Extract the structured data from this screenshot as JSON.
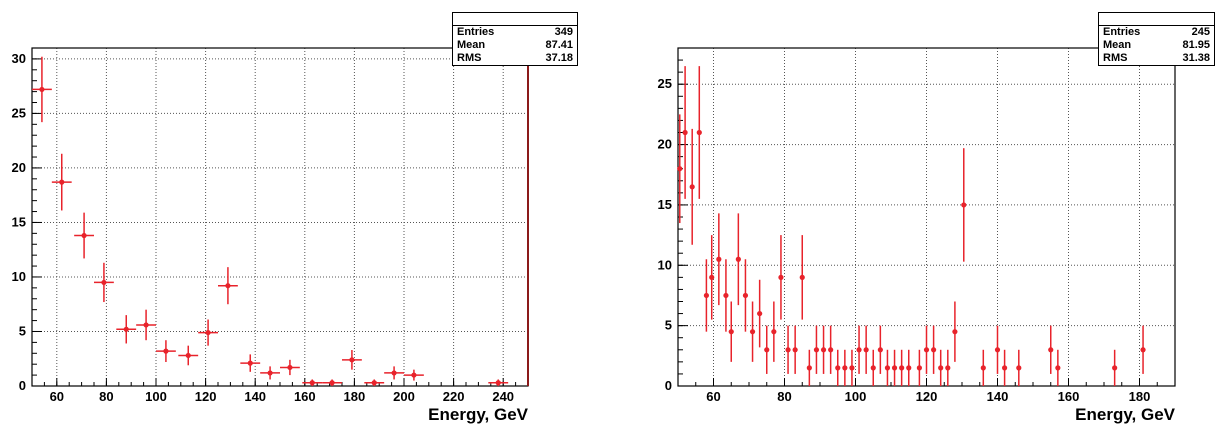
{
  "chart_data": [
    {
      "type": "scatter",
      "style": "histogram with error bars",
      "xlabel": "Energy, GeV",
      "xlim": [
        50,
        250
      ],
      "ylim": [
        0,
        31
      ],
      "xticks": [
        60,
        80,
        100,
        120,
        140,
        160,
        180,
        200,
        220,
        240
      ],
      "yticks": [
        0,
        5,
        10,
        15,
        20,
        25,
        30
      ],
      "grid": true,
      "color": "#e8232b",
      "stats": {
        "entries_label": "Entries",
        "entries": "349",
        "mean_label": "Mean",
        "mean": "87.41",
        "rms_label": "RMS",
        "rms": "37.18"
      },
      "points": [
        {
          "x": 54,
          "y": 27.2,
          "xerr": 4,
          "yerr": 3.0
        },
        {
          "x": 62,
          "y": 18.7,
          "xerr": 4,
          "yerr": 2.6
        },
        {
          "x": 71,
          "y": 13.8,
          "xerr": 4,
          "yerr": 2.1
        },
        {
          "x": 79,
          "y": 9.5,
          "xerr": 4,
          "yerr": 1.8
        },
        {
          "x": 88,
          "y": 5.2,
          "xerr": 4,
          "yerr": 1.3
        },
        {
          "x": 96,
          "y": 5.6,
          "xerr": 4,
          "yerr": 1.4
        },
        {
          "x": 104,
          "y": 3.2,
          "xerr": 4,
          "yerr": 1.0
        },
        {
          "x": 113,
          "y": 2.8,
          "xerr": 4,
          "yerr": 0.9
        },
        {
          "x": 121,
          "y": 4.9,
          "xerr": 4,
          "yerr": 1.2
        },
        {
          "x": 129,
          "y": 9.2,
          "xerr": 4,
          "yerr": 1.7
        },
        {
          "x": 138,
          "y": 2.1,
          "xerr": 4,
          "yerr": 0.8
        },
        {
          "x": 146,
          "y": 1.2,
          "xerr": 4,
          "yerr": 0.6
        },
        {
          "x": 154,
          "y": 1.7,
          "xerr": 4,
          "yerr": 0.7
        },
        {
          "x": 163,
          "y": 0.3,
          "xerr": 4,
          "yerr": 0.3
        },
        {
          "x": 171,
          "y": 0.3,
          "xerr": 4,
          "yerr": 0.3
        },
        {
          "x": 179,
          "y": 2.4,
          "xerr": 4,
          "yerr": 0.9
        },
        {
          "x": 188,
          "y": 0.3,
          "xerr": 4,
          "yerr": 0.3
        },
        {
          "x": 196,
          "y": 1.2,
          "xerr": 4,
          "yerr": 0.6
        },
        {
          "x": 204,
          "y": 1.0,
          "xerr": 4,
          "yerr": 0.5
        },
        {
          "x": 238,
          "y": 0.3,
          "xerr": 4,
          "yerr": 0.3
        }
      ]
    },
    {
      "type": "scatter",
      "style": "histogram with error bars",
      "xlabel": "Energy, GeV",
      "xlim": [
        50,
        190
      ],
      "ylim": [
        0,
        28
      ],
      "xticks": [
        60,
        80,
        100,
        120,
        140,
        160,
        180
      ],
      "yticks": [
        0,
        5,
        10,
        15,
        20,
        25
      ],
      "grid": true,
      "color": "#e8232b",
      "stats": {
        "entries_label": "Entries",
        "entries": "245",
        "mean_label": "Mean",
        "mean": "81.95",
        "rms_label": "RMS",
        "rms": "31.38"
      },
      "points": [
        {
          "x": 50.5,
          "y": 18.0,
          "yerr": 4.5
        },
        {
          "x": 52.0,
          "y": 21.0,
          "yerr": 5.5
        },
        {
          "x": 54.0,
          "y": 16.5,
          "yerr": 4.8
        },
        {
          "x": 56.0,
          "y": 21.0,
          "yerr": 5.5
        },
        {
          "x": 58.0,
          "y": 7.5,
          "yerr": 3.0
        },
        {
          "x": 59.5,
          "y": 9.0,
          "yerr": 3.5
        },
        {
          "x": 61.5,
          "y": 10.5,
          "yerr": 3.8
        },
        {
          "x": 63.5,
          "y": 7.5,
          "yerr": 3.0
        },
        {
          "x": 65.0,
          "y": 4.5,
          "yerr": 2.5
        },
        {
          "x": 67.0,
          "y": 10.5,
          "yerr": 3.8
        },
        {
          "x": 69.0,
          "y": 7.5,
          "yerr": 3.0
        },
        {
          "x": 71.0,
          "y": 4.5,
          "yerr": 2.5
        },
        {
          "x": 73.0,
          "y": 6.0,
          "yerr": 2.8
        },
        {
          "x": 75.0,
          "y": 3.0,
          "yerr": 2.0
        },
        {
          "x": 77.0,
          "y": 4.5,
          "yerr": 2.5
        },
        {
          "x": 79.0,
          "y": 9.0,
          "yerr": 3.5
        },
        {
          "x": 81.0,
          "y": 3.0,
          "yerr": 2.0
        },
        {
          "x": 83.0,
          "y": 3.0,
          "yerr": 2.0
        },
        {
          "x": 85.0,
          "y": 9.0,
          "yerr": 3.5
        },
        {
          "x": 87.0,
          "y": 1.5,
          "yerr": 1.5
        },
        {
          "x": 89.0,
          "y": 3.0,
          "yerr": 2.0
        },
        {
          "x": 91.0,
          "y": 3.0,
          "yerr": 2.0
        },
        {
          "x": 93.0,
          "y": 3.0,
          "yerr": 2.0
        },
        {
          "x": 95.0,
          "y": 1.5,
          "yerr": 1.5
        },
        {
          "x": 97.0,
          "y": 1.5,
          "yerr": 1.5
        },
        {
          "x": 99.0,
          "y": 1.5,
          "yerr": 1.5
        },
        {
          "x": 101.0,
          "y": 3.0,
          "yerr": 2.0
        },
        {
          "x": 103.0,
          "y": 3.0,
          "yerr": 2.0
        },
        {
          "x": 105.0,
          "y": 1.5,
          "yerr": 1.5
        },
        {
          "x": 107.0,
          "y": 3.0,
          "yerr": 2.0
        },
        {
          "x": 109.0,
          "y": 1.5,
          "yerr": 1.5
        },
        {
          "x": 111.0,
          "y": 1.5,
          "yerr": 1.5
        },
        {
          "x": 113.0,
          "y": 1.5,
          "yerr": 1.5
        },
        {
          "x": 115.0,
          "y": 1.5,
          "yerr": 1.5
        },
        {
          "x": 118.0,
          "y": 1.5,
          "yerr": 1.5
        },
        {
          "x": 120.0,
          "y": 3.0,
          "yerr": 2.0
        },
        {
          "x": 122.0,
          "y": 3.0,
          "yerr": 2.0
        },
        {
          "x": 124.0,
          "y": 1.5,
          "yerr": 1.5
        },
        {
          "x": 126.0,
          "y": 1.5,
          "yerr": 1.5
        },
        {
          "x": 128.0,
          "y": 4.5,
          "yerr": 2.5
        },
        {
          "x": 130.5,
          "y": 15.0,
          "yerr": 4.7
        },
        {
          "x": 136.0,
          "y": 1.5,
          "yerr": 1.5
        },
        {
          "x": 140.0,
          "y": 3.0,
          "yerr": 2.0
        },
        {
          "x": 142.0,
          "y": 1.5,
          "yerr": 1.5
        },
        {
          "x": 146.0,
          "y": 1.5,
          "yerr": 1.5
        },
        {
          "x": 155.0,
          "y": 3.0,
          "yerr": 2.0
        },
        {
          "x": 157.0,
          "y": 1.5,
          "yerr": 1.5
        },
        {
          "x": 173.0,
          "y": 1.5,
          "yerr": 1.5
        },
        {
          "x": 181.0,
          "y": 3.0,
          "yerr": 2.0
        }
      ]
    }
  ]
}
